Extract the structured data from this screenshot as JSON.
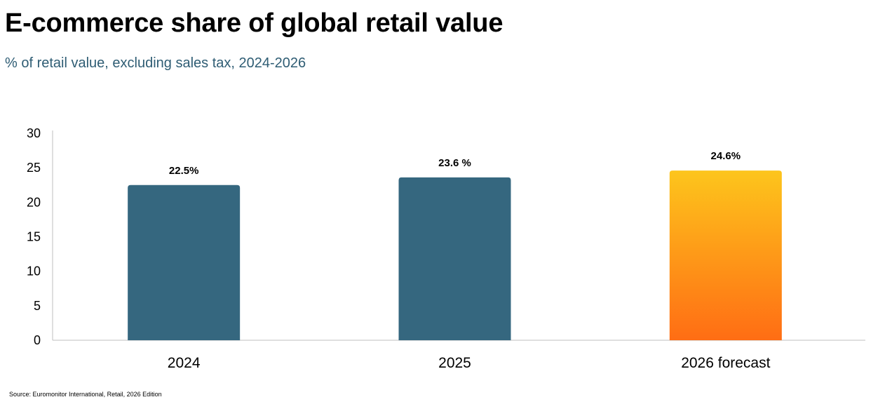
{
  "title": "E-commerce share of global retail value",
  "subtitle": "% of retail value, excluding sales tax, 2024-2026",
  "source": "Source: Euromonitor International, Retail, 2026 Edition",
  "colors": {
    "subtitle": "#2f5d74",
    "bar_actual": "#35677f",
    "forecast_top": "#fdc51c",
    "forecast_bottom": "#ff6d14",
    "axis": "#bfbfbf"
  },
  "chart_data": {
    "type": "bar",
    "categories": [
      "2024",
      "2025",
      "2026 forecast"
    ],
    "values": [
      22.5,
      23.6,
      24.6
    ],
    "data_labels": [
      "22.5%",
      "23.6 %",
      "24.6%"
    ],
    "forecast_flags": [
      false,
      false,
      true
    ],
    "yticks": [
      "0",
      "5",
      "10",
      "15",
      "20",
      "25",
      "30"
    ],
    "ylim": [
      0,
      30
    ],
    "grid": false,
    "legend": "none",
    "xlabel": "",
    "ylabel": ""
  }
}
